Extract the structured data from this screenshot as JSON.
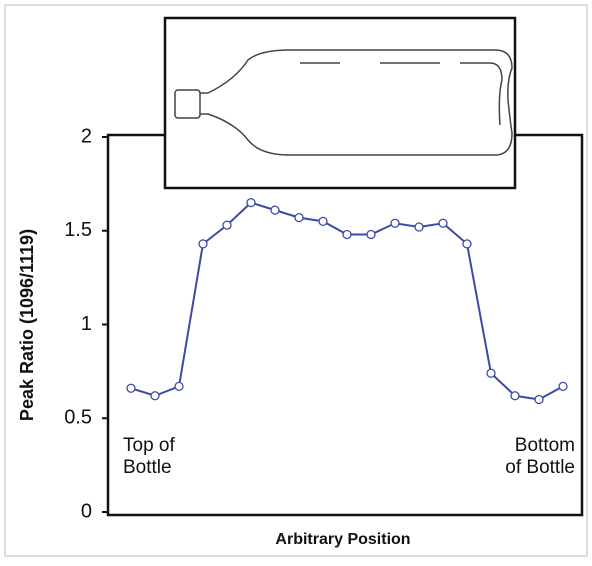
{
  "chart_data": {
    "type": "line",
    "y_label": "Peak Ratio (1096/1119)",
    "x_label": "Arbitrary Position",
    "categories": [
      null,
      null,
      null,
      null,
      null,
      null,
      null,
      null,
      null,
      null,
      null,
      null,
      null,
      null,
      null,
      null,
      null,
      null,
      null
    ],
    "series": [
      {
        "color": "#3b4aa3",
        "values": [
          0.66,
          0.62,
          0.67,
          1.43,
          1.53,
          1.65,
          1.61,
          1.57,
          1.55,
          1.48,
          1.48,
          1.54,
          1.52,
          1.54,
          1.43,
          0.74,
          0.62,
          0.6,
          0.67
        ]
      }
    ],
    "ylim": [
      0,
      2
    ],
    "yticks": [
      0,
      0.5,
      1,
      1.5,
      2
    ],
    "annotations": [
      [
        "Top of",
        "Bottle"
      ],
      [
        "Bottom",
        "of Bottle"
      ]
    ]
  }
}
